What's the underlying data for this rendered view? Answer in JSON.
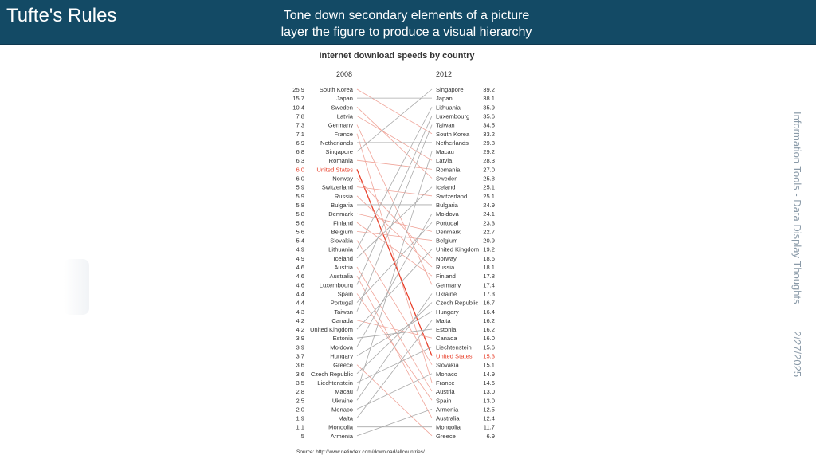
{
  "slide": {
    "title": "Tufte's Rules",
    "subtitle_line1": "Tone down secondary elements of a picture",
    "subtitle_line2": "layer the figure to produce a visual hierarchy",
    "side_label": "Information Tools - Data Display Thoughts",
    "side_date": "2/27/2025"
  },
  "colors": {
    "header_bg": "#134a65",
    "highlight": "#e8412c",
    "gray_line": "#a9a9a9",
    "salmon_line": "#f0a59a",
    "text": "#333333"
  },
  "chart_data": {
    "type": "slopegraph",
    "title": "Internet download speeds by country",
    "left_header": "2008",
    "right_header": "2012",
    "source": "Source: http://www.netindex.com/download/allcountries/",
    "highlight": "United States",
    "left": [
      {
        "country": "South Korea",
        "value": "25.9"
      },
      {
        "country": "Japan",
        "value": "15.7"
      },
      {
        "country": "Sweden",
        "value": "10.4"
      },
      {
        "country": "Latvia",
        "value": "7.8"
      },
      {
        "country": "Germany",
        "value": "7.3"
      },
      {
        "country": "France",
        "value": "7.1"
      },
      {
        "country": "Netherlands",
        "value": "6.9"
      },
      {
        "country": "Singapore",
        "value": "6.8"
      },
      {
        "country": "Romania",
        "value": "6.3"
      },
      {
        "country": "United States",
        "value": "6.0"
      },
      {
        "country": "Norway",
        "value": "6.0"
      },
      {
        "country": "Switzerland",
        "value": "5.9"
      },
      {
        "country": "Russia",
        "value": "5.9"
      },
      {
        "country": "Bulgaria",
        "value": "5.8"
      },
      {
        "country": "Denmark",
        "value": "5.8"
      },
      {
        "country": "Finland",
        "value": "5.6"
      },
      {
        "country": "Belgium",
        "value": "5.6"
      },
      {
        "country": "Slovakia",
        "value": "5.4"
      },
      {
        "country": "Lithuania",
        "value": "4.9"
      },
      {
        "country": "Iceland",
        "value": "4.9"
      },
      {
        "country": "Austria",
        "value": "4.6"
      },
      {
        "country": "Australia",
        "value": "4.6"
      },
      {
        "country": "Luxembourg",
        "value": "4.6"
      },
      {
        "country": "Spain",
        "value": "4.4"
      },
      {
        "country": "Portugal",
        "value": "4.4"
      },
      {
        "country": "Taiwan",
        "value": "4.3"
      },
      {
        "country": "Canada",
        "value": "4.2"
      },
      {
        "country": "United Kingdom",
        "value": "4.2"
      },
      {
        "country": "Estonia",
        "value": "3.9"
      },
      {
        "country": "Moldova",
        "value": "3.9"
      },
      {
        "country": "Hungary",
        "value": "3.7"
      },
      {
        "country": "Greece",
        "value": "3.6"
      },
      {
        "country": "Czech Republic",
        "value": "3.6"
      },
      {
        "country": "Liechtenstein",
        "value": "3.5"
      },
      {
        "country": "Macau",
        "value": "2.8"
      },
      {
        "country": "Ukraine",
        "value": "2.5"
      },
      {
        "country": "Monaco",
        "value": "2.0"
      },
      {
        "country": "Malta",
        "value": "1.9"
      },
      {
        "country": "Mongolia",
        "value": "1.1"
      },
      {
        "country": "Armenia",
        "value": ".5"
      }
    ],
    "right": [
      {
        "country": "Singapore",
        "value": "39.2"
      },
      {
        "country": "Japan",
        "value": "38.1"
      },
      {
        "country": "Lithuania",
        "value": "35.9"
      },
      {
        "country": "Luxembourg",
        "value": "35.6"
      },
      {
        "country": "Taiwan",
        "value": "34.5"
      },
      {
        "country": "South Korea",
        "value": "33.2"
      },
      {
        "country": "Netherlands",
        "value": "29.8"
      },
      {
        "country": "Macau",
        "value": "29.2"
      },
      {
        "country": "Latvia",
        "value": "28.3"
      },
      {
        "country": "Romania",
        "value": "27.0"
      },
      {
        "country": "Sweden",
        "value": "25.8"
      },
      {
        "country": "Iceland",
        "value": "25.1"
      },
      {
        "country": "Switzerland",
        "value": "25.1"
      },
      {
        "country": "Bulgaria",
        "value": "24.9"
      },
      {
        "country": "Moldova",
        "value": "24.1"
      },
      {
        "country": "Portugal",
        "value": "23.3"
      },
      {
        "country": "Denmark",
        "value": "22.7"
      },
      {
        "country": "Belgium",
        "value": "20.9"
      },
      {
        "country": "United Kingdom",
        "value": "19.2"
      },
      {
        "country": "Norway",
        "value": "18.6"
      },
      {
        "country": "Russia",
        "value": "18.1"
      },
      {
        "country": "Finland",
        "value": "17.8"
      },
      {
        "country": "Germany",
        "value": "17.4"
      },
      {
        "country": "Ukraine",
        "value": "17.3"
      },
      {
        "country": "Czech Republic",
        "value": "16.7"
      },
      {
        "country": "Hungary",
        "value": "16.4"
      },
      {
        "country": "Malta",
        "value": "16.2"
      },
      {
        "country": "Estonia",
        "value": "16.2"
      },
      {
        "country": "Canada",
        "value": "16.0"
      },
      {
        "country": "Liechtenstein",
        "value": "15.6"
      },
      {
        "country": "United States",
        "value": "15.3"
      },
      {
        "country": "Slovakia",
        "value": "15.1"
      },
      {
        "country": "Monaco",
        "value": "14.9"
      },
      {
        "country": "France",
        "value": "14.6"
      },
      {
        "country": "Austria",
        "value": "13.0"
      },
      {
        "country": "Spain",
        "value": "13.0"
      },
      {
        "country": "Armenia",
        "value": "12.5"
      },
      {
        "country": "Australia",
        "value": "12.4"
      },
      {
        "country": "Mongolia",
        "value": "11.7"
      },
      {
        "country": "Greece",
        "value": "6.9"
      }
    ]
  }
}
